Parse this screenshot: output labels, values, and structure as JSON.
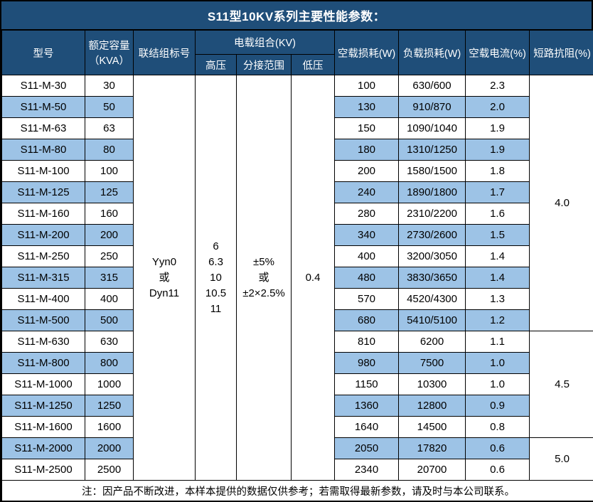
{
  "title": "S11型10KV系列主要性能参数：",
  "colors": {
    "header_bg": "#1F4E79",
    "zebra_bg": "#9DC3E6",
    "border": "#000000",
    "header_text": "#FFFFFF"
  },
  "table": {
    "headers": {
      "model": "型号",
      "capacity_line1": "额定容量",
      "capacity_line2": "（KVA）",
      "connection": "联结组标号",
      "voltage_group": "电载组合(KV)",
      "hv": "高压",
      "tap_range": "分接范围",
      "lv": "低压",
      "no_load_loss": "空载损耗(W)",
      "load_loss": "负载损耗(W)",
      "no_load_current": "空载电流(%)",
      "impedance": "短路抗阻(%)"
    },
    "merged": {
      "connection_lines": [
        "Yyn0",
        "或",
        "Dyn11"
      ],
      "hv_lines": [
        "6",
        "6.3",
        "10",
        "10.5",
        "11"
      ],
      "tap_lines": [
        "±5%",
        "或",
        "±2×2.5%"
      ],
      "lv": "0.4"
    },
    "impedance_groups": [
      {
        "value": "4.0",
        "span": 12
      },
      {
        "value": "4.5",
        "span": 5
      },
      {
        "value": "5.0",
        "span": 2
      }
    ],
    "rows": [
      {
        "model": "S11-M-30",
        "kva": "30",
        "no_load_loss": "100",
        "load_loss": "630/600",
        "no_load_current": "2.3"
      },
      {
        "model": "S11-M-50",
        "kva": "50",
        "no_load_loss": "130",
        "load_loss": "910/870",
        "no_load_current": "2.0"
      },
      {
        "model": "S11-M-63",
        "kva": "63",
        "no_load_loss": "150",
        "load_loss": "1090/1040",
        "no_load_current": "1.9"
      },
      {
        "model": "S11-M-80",
        "kva": "80",
        "no_load_loss": "180",
        "load_loss": "1310/1250",
        "no_load_current": "1.9"
      },
      {
        "model": "S11-M-100",
        "kva": "100",
        "no_load_loss": "200",
        "load_loss": "1580/1500",
        "no_load_current": "1.8"
      },
      {
        "model": "S11-M-125",
        "kva": "125",
        "no_load_loss": "240",
        "load_loss": "1890/1800",
        "no_load_current": "1.7"
      },
      {
        "model": "S11-M-160",
        "kva": "160",
        "no_load_loss": "280",
        "load_loss": "2310/2200",
        "no_load_current": "1.6"
      },
      {
        "model": "S11-M-200",
        "kva": "200",
        "no_load_loss": "340",
        "load_loss": "2730/2600",
        "no_load_current": "1.5"
      },
      {
        "model": "S11-M-250",
        "kva": "250",
        "no_load_loss": "400",
        "load_loss": "3200/3050",
        "no_load_current": "1.4"
      },
      {
        "model": "S11-M-315",
        "kva": "315",
        "no_load_loss": "480",
        "load_loss": "3830/3650",
        "no_load_current": "1.4"
      },
      {
        "model": "S11-M-400",
        "kva": "400",
        "no_load_loss": "570",
        "load_loss": "4520/4300",
        "no_load_current": "1.3"
      },
      {
        "model": "S11-M-500",
        "kva": "500",
        "no_load_loss": "680",
        "load_loss": "5410/5100",
        "no_load_current": "1.2"
      },
      {
        "model": "S11-M-630",
        "kva": "630",
        "no_load_loss": "810",
        "load_loss": "6200",
        "no_load_current": "1.1"
      },
      {
        "model": "S11-M-800",
        "kva": "800",
        "no_load_loss": "980",
        "load_loss": "7500",
        "no_load_current": "1.0"
      },
      {
        "model": "S11-M-1000",
        "kva": "1000",
        "no_load_loss": "1150",
        "load_loss": "10300",
        "no_load_current": "1.0"
      },
      {
        "model": "S11-M-1250",
        "kva": "1250",
        "no_load_loss": "1360",
        "load_loss": "12800",
        "no_load_current": "0.9"
      },
      {
        "model": "S11-M-1600",
        "kva": "1600",
        "no_load_loss": "1640",
        "load_loss": "14500",
        "no_load_current": "0.8"
      },
      {
        "model": "S11-M-2000",
        "kva": "2000",
        "no_load_loss": "2050",
        "load_loss": "17820",
        "no_load_current": "0.6"
      },
      {
        "model": "S11-M-2500",
        "kva": "2500",
        "no_load_loss": "2340",
        "load_loss": "20700",
        "no_load_current": "0.6"
      }
    ]
  },
  "footer_note": "注：因产品不断改进，本样本提供的数据仅供参考；若需取得最新参数，请及时与本公司联系。"
}
